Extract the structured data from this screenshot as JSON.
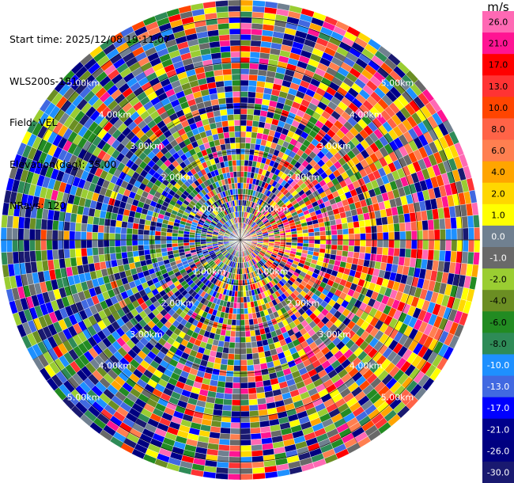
{
  "header": {
    "start_time": "Start time: 2025/12/08 19:11:07",
    "instrument": "WLS200s-181",
    "field": "Field: VEL",
    "elevation": "Elevation(deg): 35.00",
    "nrays": "NRays: 120"
  },
  "colorbar": {
    "unit": "m/s",
    "ticks": [
      "26.0",
      "21.0",
      "17.0",
      "13.0",
      "10.0",
      "8.0",
      "6.0",
      "4.0",
      "2.0",
      "1.0",
      "0.0",
      "-1.0",
      "-2.0",
      "-4.0",
      "-6.0",
      "-8.0",
      "-10.0",
      "-13.0",
      "-17.0",
      "-21.0",
      "-26.0",
      "-30.0"
    ],
    "bins": [
      {
        "color": "#ff69b4"
      },
      {
        "color": "#ff1493"
      },
      {
        "color": "#ff0000"
      },
      {
        "color": "#ff3333"
      },
      {
        "color": "#ff4500"
      },
      {
        "color": "#ff6347"
      },
      {
        "color": "#ff7f50"
      },
      {
        "color": "#ffa500"
      },
      {
        "color": "#ffd700"
      },
      {
        "color": "#ffff00"
      },
      {
        "color": "#708090"
      },
      {
        "color": "#696969"
      },
      {
        "color": "#9acd32"
      },
      {
        "color": "#6b8e23"
      },
      {
        "color": "#228b22"
      },
      {
        "color": "#2e8b57"
      },
      {
        "color": "#1e90ff"
      },
      {
        "color": "#4169e1"
      },
      {
        "color": "#0000ff"
      },
      {
        "color": "#00008b"
      },
      {
        "color": "#000080"
      },
      {
        "color": "#191970"
      }
    ]
  },
  "chart_data": {
    "type": "ppi",
    "field": "VEL",
    "elevation_deg": 35.0,
    "n_rays": 120,
    "range_rings_km": [
      1.0,
      2.0,
      3.0,
      4.0,
      5.0
    ],
    "ring_labels": [
      "1.00km",
      "2.00km",
      "3.00km",
      "4.00km",
      "5.00km"
    ],
    "max_range_km": 5.4,
    "value_range": [
      -30.0,
      30.0
    ]
  }
}
